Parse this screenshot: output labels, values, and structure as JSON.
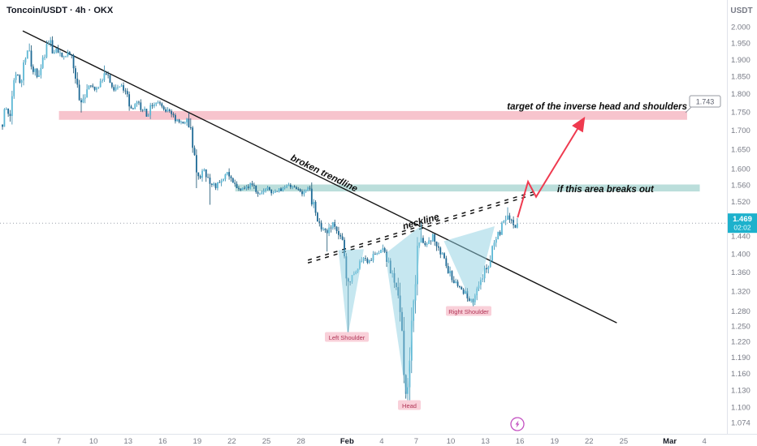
{
  "header": {
    "symbol_title": "Toncoin/USDT · 4h · OKX",
    "axis_currency": "USDT"
  },
  "chart_data": {
    "type": "candlestick",
    "symbol": "Toncoin/USDT",
    "interval": "4h",
    "exchange": "OKX",
    "price_scale": "logarithmic",
    "current_price": "1.469",
    "countdown": "02:02",
    "target_price_label": "1.743",
    "price_axis_ticks": [
      "2.000",
      "1.950",
      "1.900",
      "1.850",
      "1.800",
      "1.750",
      "1.700",
      "1.650",
      "1.600",
      "1.560",
      "1.520",
      "1.480",
      "1.440",
      "1.400",
      "1.360",
      "1.320",
      "1.280",
      "1.250",
      "1.220",
      "1.190",
      "1.160",
      "1.130",
      "1.100",
      "1.074"
    ],
    "time_axis_ticks": [
      {
        "label": "4",
        "day": 0
      },
      {
        "label": "7",
        "day": 3
      },
      {
        "label": "10",
        "day": 6
      },
      {
        "label": "13",
        "day": 9
      },
      {
        "label": "16",
        "day": 12
      },
      {
        "label": "19",
        "day": 15
      },
      {
        "label": "22",
        "day": 18
      },
      {
        "label": "25",
        "day": 21
      },
      {
        "label": "28",
        "day": 24
      },
      {
        "label": "Feb",
        "day": 28,
        "month": true
      },
      {
        "label": "4",
        "day": 31
      },
      {
        "label": "7",
        "day": 34
      },
      {
        "label": "10",
        "day": 37
      },
      {
        "label": "13",
        "day": 40
      },
      {
        "label": "16",
        "day": 43
      },
      {
        "label": "19",
        "day": 46
      },
      {
        "label": "22",
        "day": 49
      },
      {
        "label": "25",
        "day": 52
      },
      {
        "label": "Mar",
        "day": 56,
        "month": true
      },
      {
        "label": "4",
        "day": 59
      }
    ],
    "price_path": [
      [
        -1.9,
        1.715
      ],
      [
        -1.6,
        1.76
      ],
      [
        -1.3,
        1.73
      ],
      [
        -1.0,
        1.8
      ],
      [
        -0.6,
        1.86
      ],
      [
        -0.3,
        1.83
      ],
      [
        0.0,
        1.9
      ],
      [
        0.4,
        1.93
      ],
      [
        0.7,
        1.88
      ],
      [
        1.1,
        1.85
      ],
      [
        1.5,
        1.9
      ],
      [
        1.9,
        1.93
      ],
      [
        2.2,
        1.955
      ],
      [
        2.5,
        1.92
      ],
      [
        2.8,
        1.935
      ],
      [
        3.2,
        1.9
      ],
      [
        3.6,
        1.915
      ],
      [
        3.9,
        1.925
      ],
      [
        4.3,
        1.875
      ],
      [
        4.6,
        1.83
      ],
      [
        4.9,
        1.775
      ],
      [
        5.3,
        1.8
      ],
      [
        5.6,
        1.83
      ],
      [
        6.0,
        1.815
      ],
      [
        6.3,
        1.82
      ],
      [
        6.7,
        1.845
      ],
      [
        7.0,
        1.86
      ],
      [
        7.4,
        1.835
      ],
      [
        7.8,
        1.81
      ],
      [
        8.2,
        1.825
      ],
      [
        8.5,
        1.82
      ],
      [
        8.9,
        1.79
      ],
      [
        9.2,
        1.755
      ],
      [
        9.6,
        1.765
      ],
      [
        9.9,
        1.775
      ],
      [
        10.3,
        1.755
      ],
      [
        10.6,
        1.74
      ],
      [
        11.0,
        1.765
      ],
      [
        11.3,
        1.78
      ],
      [
        11.7,
        1.77
      ],
      [
        12.0,
        1.76
      ],
      [
        12.4,
        1.75
      ],
      [
        12.7,
        1.74
      ],
      [
        13.1,
        1.725
      ],
      [
        13.4,
        1.72
      ],
      [
        13.8,
        1.725
      ],
      [
        14.1,
        1.73
      ],
      [
        14.4,
        1.7
      ],
      [
        14.6,
        1.645
      ],
      [
        14.9,
        1.6
      ],
      [
        15.2,
        1.578
      ],
      [
        15.6,
        1.6
      ],
      [
        16.1,
        1.565
      ],
      [
        16.6,
        1.553
      ],
      [
        17.1,
        1.57
      ],
      [
        17.6,
        1.59
      ],
      [
        18.2,
        1.562
      ],
      [
        18.7,
        1.55
      ],
      [
        19.0,
        1.552
      ],
      [
        19.7,
        1.562
      ],
      [
        20.4,
        1.541
      ],
      [
        21.1,
        1.552
      ],
      [
        21.8,
        1.54
      ],
      [
        22.5,
        1.552
      ],
      [
        23.3,
        1.558
      ],
      [
        24.0,
        1.541
      ],
      [
        24.7,
        1.552
      ],
      [
        25.2,
        1.5
      ],
      [
        25.7,
        1.462
      ],
      [
        26.3,
        1.443
      ],
      [
        26.8,
        1.468
      ],
      [
        27.3,
        1.452
      ],
      [
        27.7,
        1.4
      ],
      [
        28.0,
        1.335
      ],
      [
        28.4,
        1.352
      ],
      [
        28.9,
        1.372
      ],
      [
        29.5,
        1.398
      ],
      [
        29.9,
        1.382
      ],
      [
        30.4,
        1.398
      ],
      [
        31.0,
        1.412
      ],
      [
        31.5,
        1.385
      ],
      [
        31.9,
        1.352
      ],
      [
        32.4,
        1.3
      ],
      [
        32.8,
        1.21
      ],
      [
        33.1,
        1.13
      ],
      [
        33.4,
        1.165
      ],
      [
        33.7,
        1.28
      ],
      [
        34.0,
        1.38
      ],
      [
        34.4,
        1.44
      ],
      [
        34.9,
        1.42
      ],
      [
        35.4,
        1.44
      ],
      [
        35.9,
        1.413
      ],
      [
        36.5,
        1.382
      ],
      [
        37.0,
        1.352
      ],
      [
        37.5,
        1.332
      ],
      [
        38.0,
        1.322
      ],
      [
        38.6,
        1.302
      ],
      [
        39.0,
        1.302
      ],
      [
        39.5,
        1.332
      ],
      [
        40.0,
        1.362
      ],
      [
        40.5,
        1.4
      ],
      [
        41.0,
        1.432
      ],
      [
        41.4,
        1.458
      ],
      [
        41.9,
        1.49
      ],
      [
        42.3,
        1.472
      ],
      [
        42.6,
        1.458
      ],
      [
        42.83,
        1.469
      ]
    ],
    "wick_spikes_low": [
      [
        4.9,
        1.748
      ],
      [
        14.9,
        1.552
      ],
      [
        16.1,
        1.512
      ],
      [
        26.3,
        1.405
      ],
      [
        28.05,
        1.228
      ],
      [
        33.1,
        1.115
      ],
      [
        39.0,
        1.286
      ]
    ],
    "wick_spikes_high": [
      [
        0.4,
        1.948
      ],
      [
        2.2,
        1.968
      ],
      [
        7.0,
        1.882
      ],
      [
        14.2,
        1.742
      ],
      [
        34.4,
        1.472
      ],
      [
        41.9,
        1.506
      ]
    ],
    "zones": [
      {
        "name": "target-zone",
        "price_from": 1.728,
        "price_to": 1.752,
        "day_from": 3.0,
        "day_to": 57.5,
        "color_key": "target_zone"
      },
      {
        "name": "breakout-zone",
        "price_from": 1.544,
        "price_to": 1.561,
        "day_from": 18.3,
        "day_to": 58.6,
        "color_key": "breakout_zone"
      }
    ],
    "lines": {
      "trendline": {
        "from": [
          -0.14,
          1.987
        ],
        "to": [
          51.4,
          1.256
        ]
      },
      "neckline": {
        "from": [
          24.6,
          1.383
        ],
        "to": [
          44.2,
          1.54
        ]
      }
    },
    "arrow": {
      "points": [
        [
          42.8,
          1.482
        ],
        [
          43.7,
          1.568
        ],
        [
          44.4,
          1.531
        ],
        [
          48.5,
          1.729
        ]
      ]
    },
    "pattern_polygons": [
      [
        [
          27.25,
          1.408
        ],
        [
          28.05,
          1.228
        ],
        [
          29.45,
          1.41
        ]
      ],
      [
        [
          31.3,
          1.4
        ],
        [
          33.15,
          1.115
        ],
        [
          34.5,
          1.465
        ]
      ],
      [
        [
          36.4,
          1.428
        ],
        [
          39.0,
          1.286
        ],
        [
          40.8,
          1.462
        ]
      ]
    ],
    "annotations": {
      "target_text": "target of the inverse head and shoulders",
      "breakout_text": "if this area breaks out",
      "trendline_text": "broken trendline",
      "neckline_text": "neckline",
      "left_shoulder": "Left Shoulder",
      "head": "Head",
      "right_shoulder": "Right Shoulder"
    },
    "colors": {
      "up": "#5cb8d5",
      "up_wick": "#2e86ab",
      "down": "#1e6a96",
      "down_wick": "#15516f",
      "pattern_fill": "rgba(141,208,226,0.5)",
      "label_bg": "#f9d0d9",
      "label_text": "#b03355",
      "badge": "#1db1cc",
      "arrow": "#ef3a4f",
      "target_zone": "rgba(240,138,155,0.5)",
      "breakout_zone": "rgba(120,190,184,0.5)",
      "event_icon": "#c34fc1"
    }
  }
}
